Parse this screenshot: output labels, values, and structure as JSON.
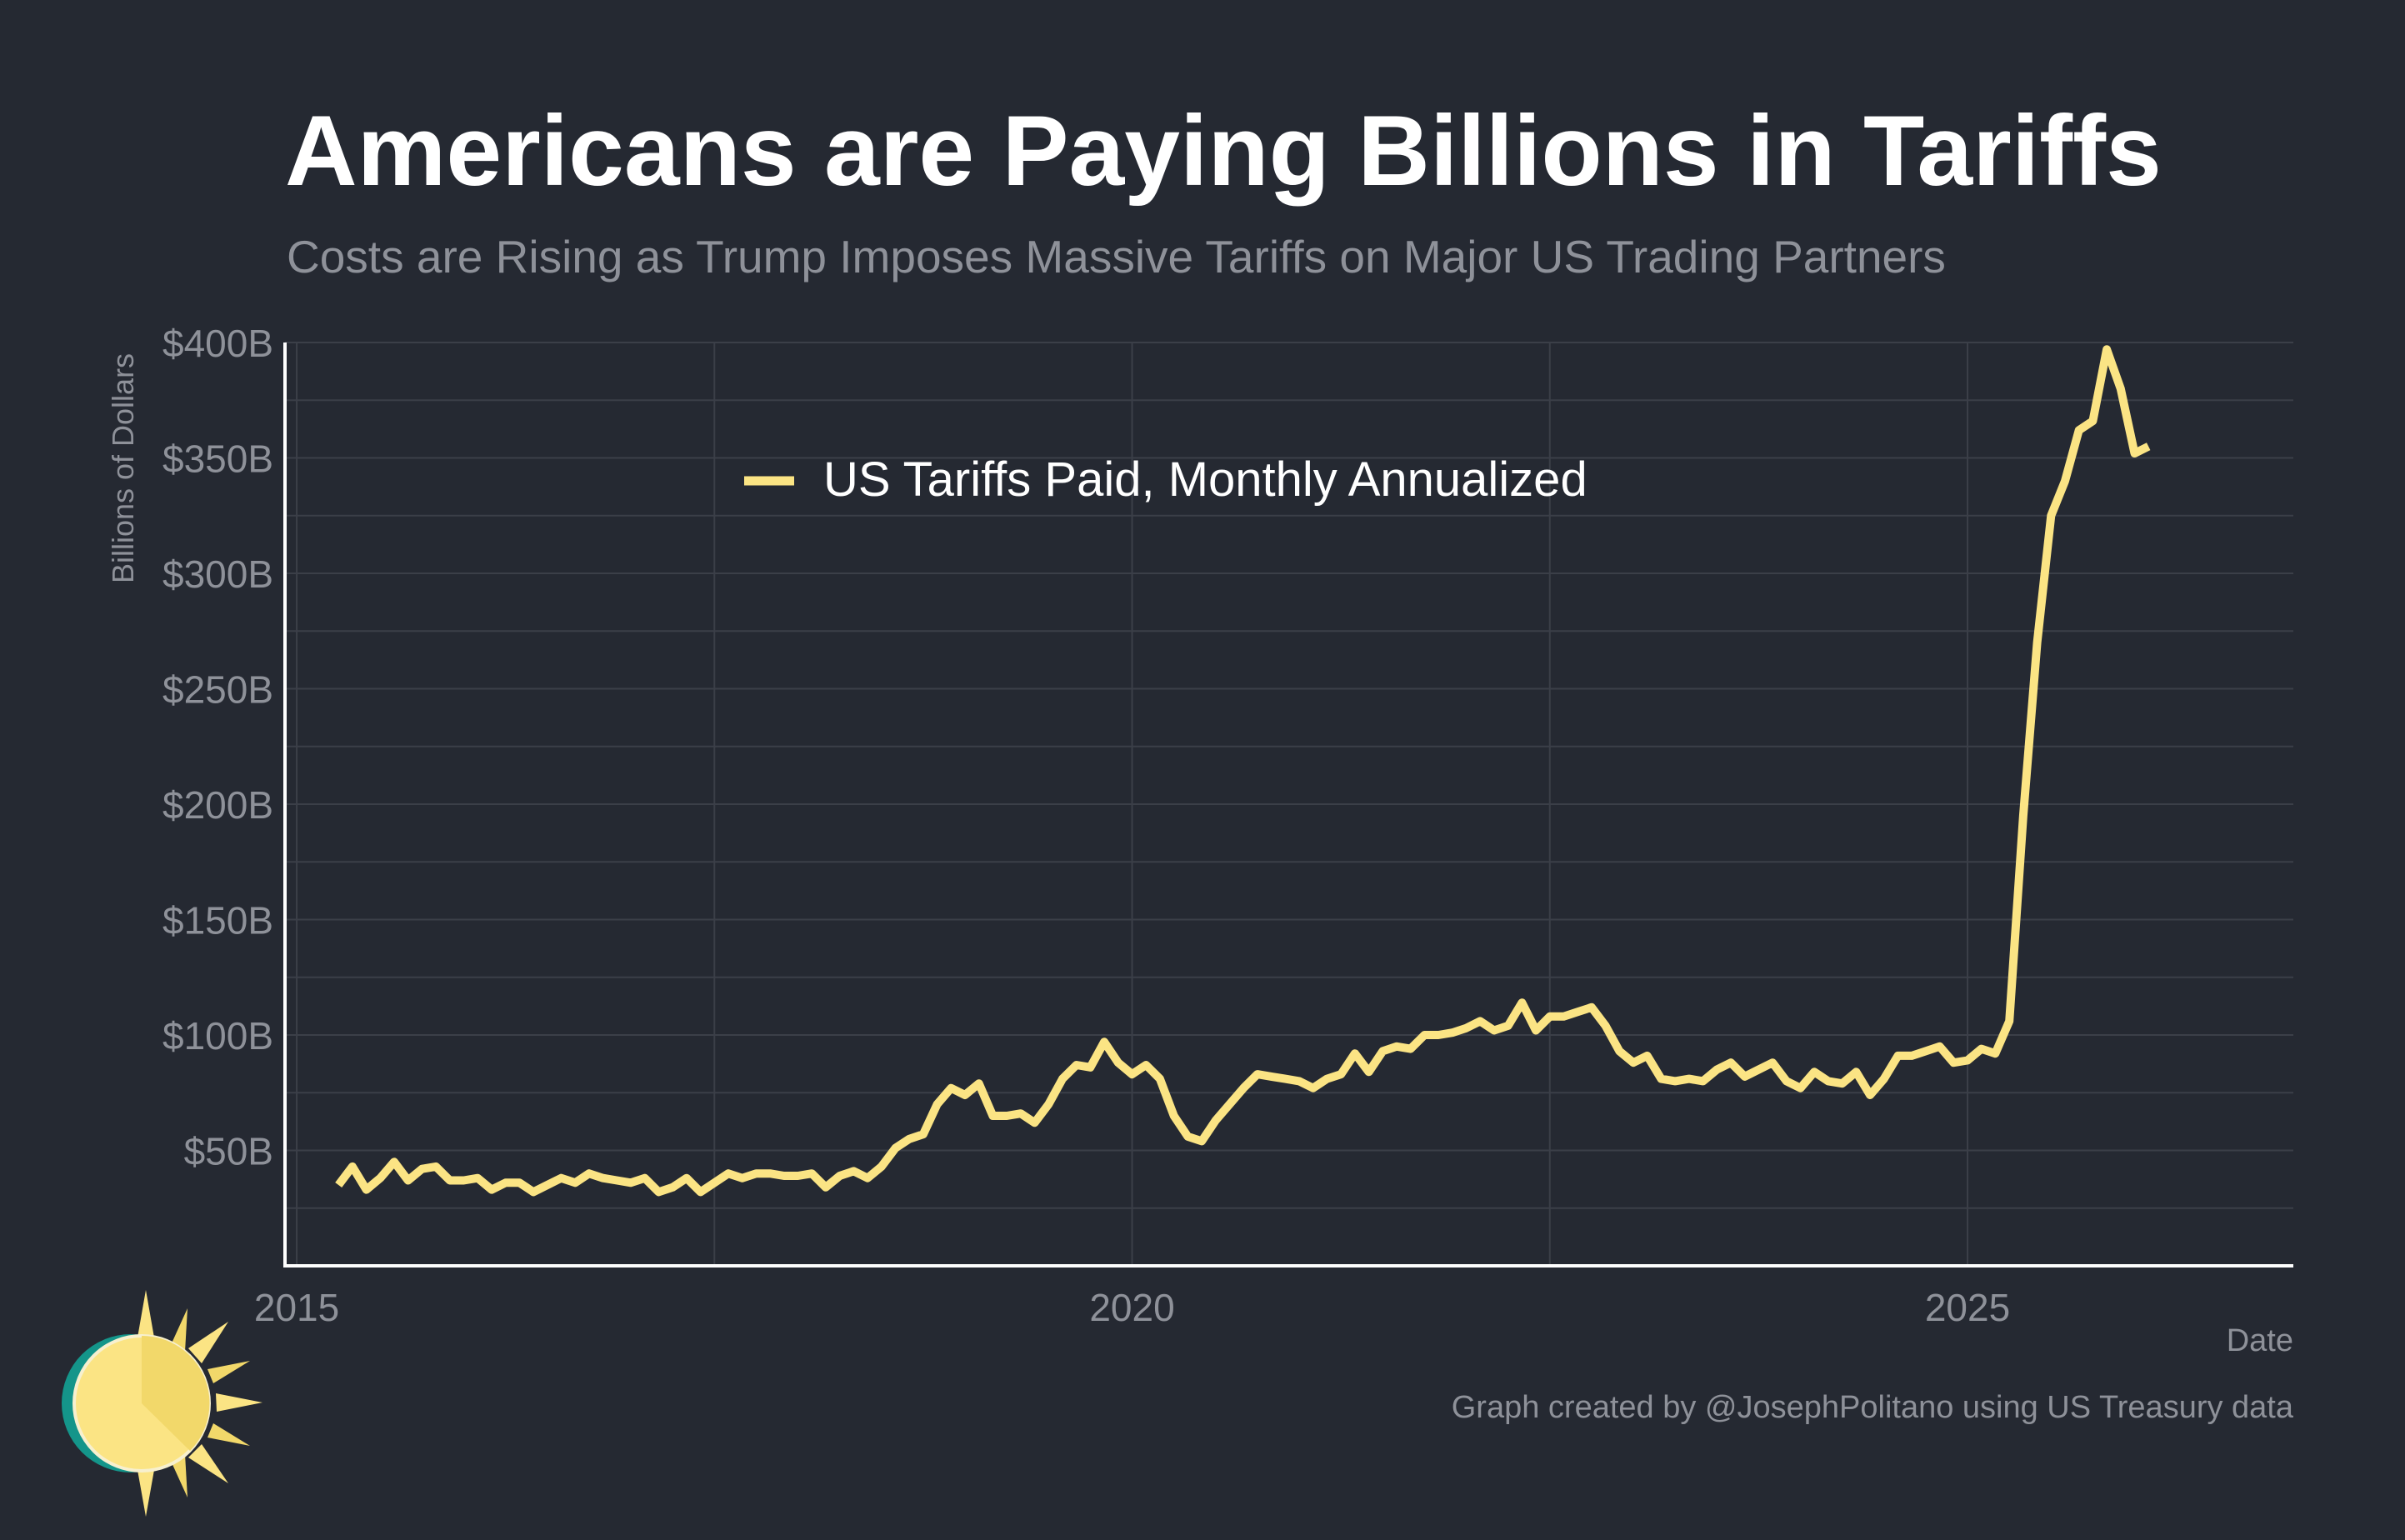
{
  "header": {
    "title": "Americans are Paying Billions in Tariffs",
    "subtitle": "Costs are Rising as Trump Imposes Massive Tariffs on Major US Trading Partners"
  },
  "footer": {
    "credit": "Graph created by @JosephPolitano using US Treasury data"
  },
  "colors": {
    "background": "#252932",
    "series": "#fbe484",
    "title": "#ffffff",
    "muted": "#8e9199",
    "grid": "#3b3f48",
    "axis": "#ffffff",
    "logo_teal": "#14958a",
    "logo_yellow": "#fbe484",
    "logo_gold": "#f2d86a"
  },
  "logo": {
    "icon": "sun-icon"
  },
  "chart_data": {
    "type": "line",
    "xlabel": "Date",
    "ylabel": "Billions of Dollars",
    "xlim": [
      2014.93,
      2026.95
    ],
    "ylim": [
      0,
      400
    ],
    "x_ticks": [
      2015,
      2020,
      2025
    ],
    "y_ticks": [
      50,
      100,
      150,
      200,
      250,
      300,
      350,
      400
    ],
    "y_tick_labels": [
      "$50B",
      "$100B",
      "$150B",
      "$200B",
      "$250B",
      "$300B",
      "$350B",
      "$400B"
    ],
    "grid": true,
    "legend_position": "top-center",
    "series": [
      {
        "name": "US Tariffs Paid, Monthly Annualized",
        "start": "2015-04",
        "frequency": "monthly",
        "values": [
          35,
          43,
          33,
          38,
          45,
          37,
          42,
          43,
          37,
          37,
          38,
          33,
          36,
          36,
          32,
          35,
          38,
          36,
          40,
          38,
          37,
          36,
          38,
          32,
          34,
          38,
          32,
          36,
          40,
          38,
          40,
          40,
          39,
          39,
          40,
          34,
          39,
          41,
          38,
          43,
          51,
          55,
          57,
          70,
          77,
          74,
          79,
          65,
          65,
          66,
          62,
          70,
          81,
          87,
          86,
          97,
          88,
          83,
          87,
          81,
          65,
          56,
          54,
          63,
          70,
          77,
          83,
          82,
          81,
          80,
          77,
          81,
          83,
          92,
          84,
          93,
          95,
          94,
          100,
          100,
          101,
          103,
          106,
          102,
          104,
          114,
          102,
          108,
          108,
          110,
          112,
          104,
          93,
          88,
          91,
          81,
          80,
          81,
          80,
          85,
          88,
          82,
          85,
          88,
          80,
          77,
          84,
          80,
          79,
          84,
          74,
          81,
          91,
          91,
          93,
          95,
          88,
          89,
          94,
          92,
          106,
          195,
          270,
          325,
          340,
          362,
          366,
          397,
          380,
          352,
          355
        ]
      }
    ]
  }
}
